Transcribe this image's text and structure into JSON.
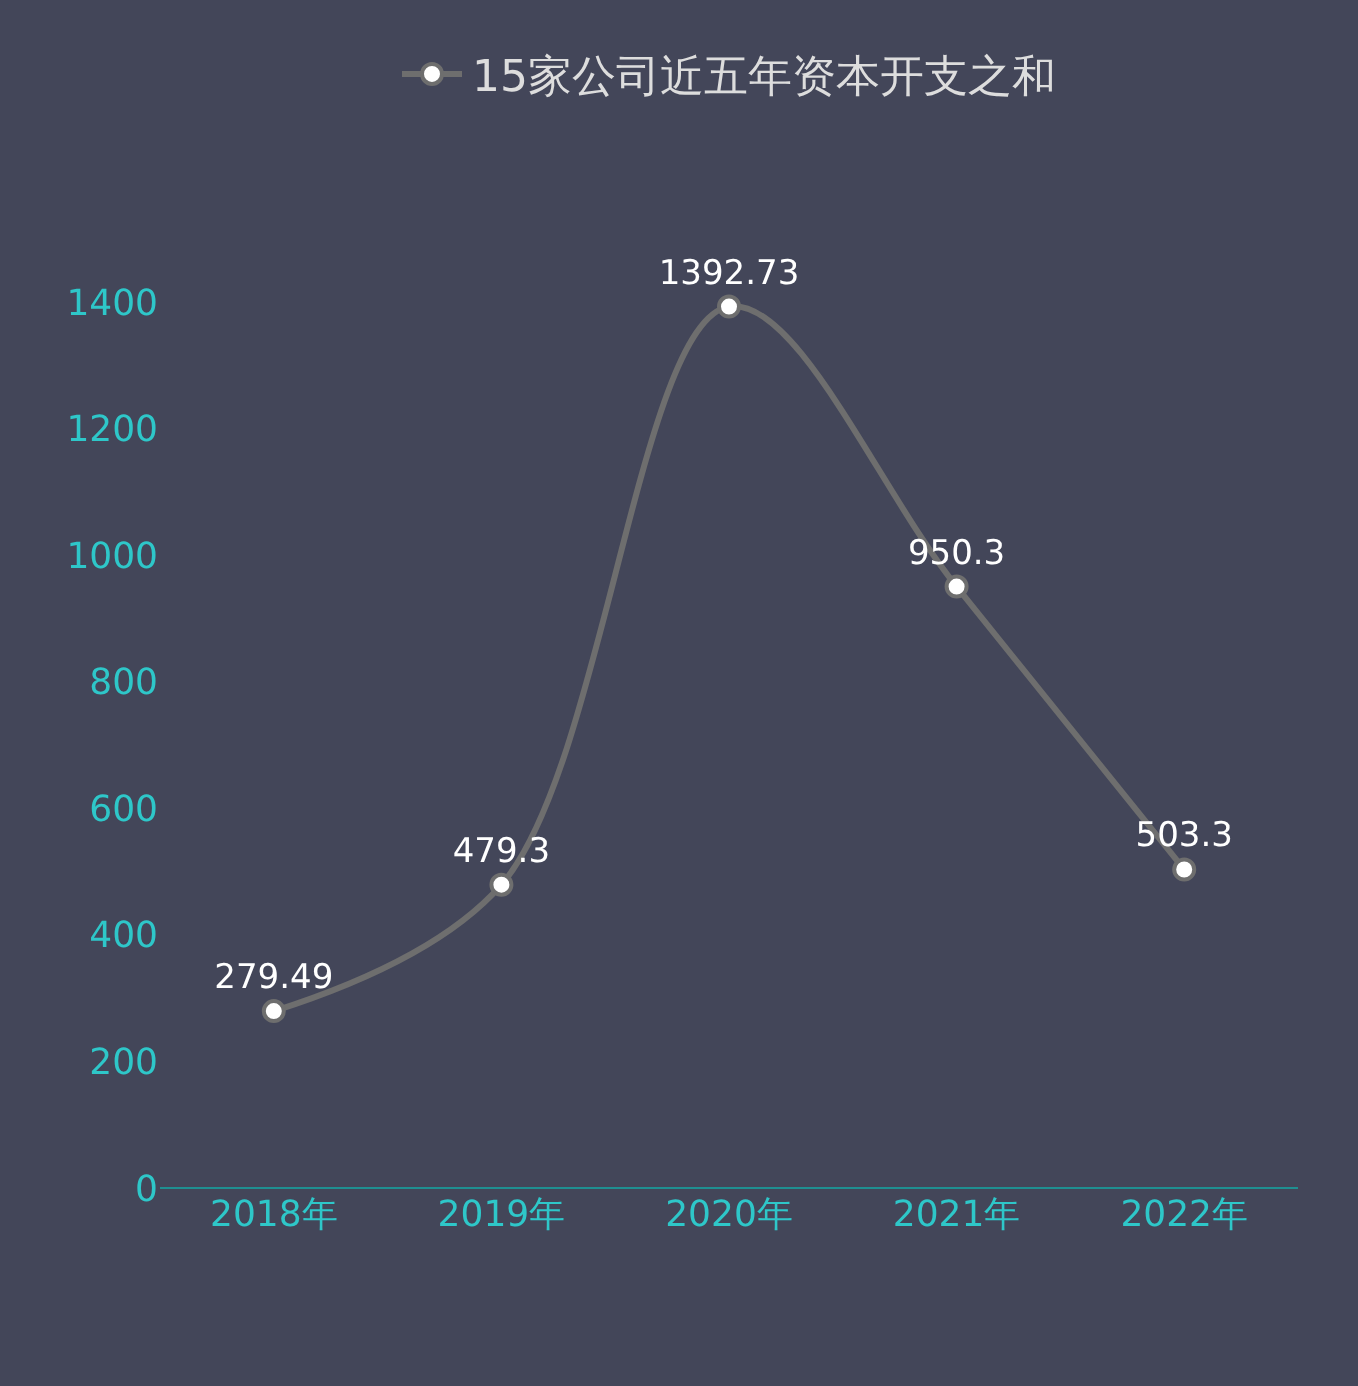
{
  "chart_data": {
    "type": "line",
    "categories": [
      "2018年",
      "2019年",
      "2020年",
      "2021年",
      "2022年"
    ],
    "series": [
      {
        "name": "15家公司近五年资本开支之和",
        "color": "#6e6e6e",
        "values": [
          279.49,
          479.3,
          1392.73,
          950.3,
          503.3
        ]
      }
    ],
    "ylim": [
      0,
      1400
    ],
    "yticks": [
      0,
      200,
      400,
      600,
      800,
      1000,
      1200,
      1400
    ],
    "data_labels": true,
    "legend": "top",
    "grid": false,
    "marker": "circle",
    "line_style": "solid"
  }
}
